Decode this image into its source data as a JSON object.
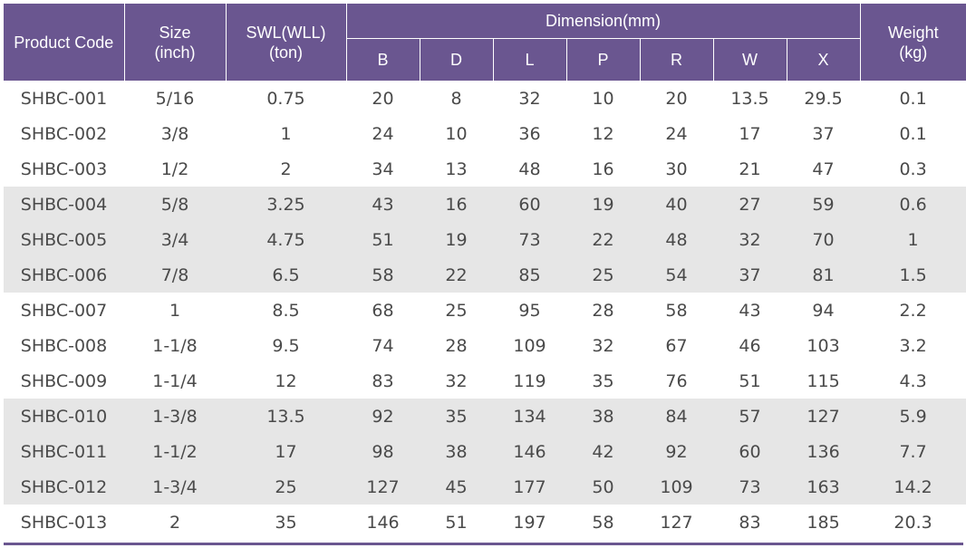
{
  "table": {
    "headers": {
      "product_code": "Product Code",
      "size_line1": "Size",
      "size_line2": "(inch)",
      "swl_line1": "SWL(WLL)",
      "swl_line2": "(ton)",
      "dimension": "Dimension(mm)",
      "weight_line1": "Weight",
      "weight_line2": "(kg)",
      "dims": [
        "B",
        "D",
        "L",
        "P",
        "R",
        "W",
        "X"
      ]
    },
    "header_color": "#6a5690",
    "shade_color": "#e6e6e6",
    "rows": [
      [
        "SHBC-001",
        "5/16",
        "0.75",
        "20",
        "8",
        "32",
        "10",
        "20",
        "13.5",
        "29.5",
        "0.1"
      ],
      [
        "SHBC-002",
        "3/8",
        "1",
        "24",
        "10",
        "36",
        "12",
        "24",
        "17",
        "37",
        "0.1"
      ],
      [
        "SHBC-003",
        "1/2",
        "2",
        "34",
        "13",
        "48",
        "16",
        "30",
        "21",
        "47",
        "0.3"
      ],
      [
        "SHBC-004",
        "5/8",
        "3.25",
        "43",
        "16",
        "60",
        "19",
        "40",
        "27",
        "59",
        "0.6"
      ],
      [
        "SHBC-005",
        "3/4",
        "4.75",
        "51",
        "19",
        "73",
        "22",
        "48",
        "32",
        "70",
        "1"
      ],
      [
        "SHBC-006",
        "7/8",
        "6.5",
        "58",
        "22",
        "85",
        "25",
        "54",
        "37",
        "81",
        "1.5"
      ],
      [
        "SHBC-007",
        "1",
        "8.5",
        "68",
        "25",
        "95",
        "28",
        "58",
        "43",
        "94",
        "2.2"
      ],
      [
        "SHBC-008",
        "1-1/8",
        "9.5",
        "74",
        "28",
        "109",
        "32",
        "67",
        "46",
        "103",
        "3.2"
      ],
      [
        "SHBC-009",
        "1-1/4",
        "12",
        "83",
        "32",
        "119",
        "35",
        "76",
        "51",
        "115",
        "4.3"
      ],
      [
        "SHBC-010",
        "1-3/8",
        "13.5",
        "92",
        "35",
        "134",
        "38",
        "84",
        "57",
        "127",
        "5.9"
      ],
      [
        "SHBC-011",
        "1-1/2",
        "17",
        "98",
        "38",
        "146",
        "42",
        "92",
        "60",
        "136",
        "7.7"
      ],
      [
        "SHBC-012",
        "1-3/4",
        "25",
        "127",
        "45",
        "177",
        "50",
        "109",
        "73",
        "163",
        "14.2"
      ],
      [
        "SHBC-013",
        "2",
        "35",
        "146",
        "51",
        "197",
        "58",
        "127",
        "83",
        "185",
        "20.3"
      ]
    ]
  }
}
